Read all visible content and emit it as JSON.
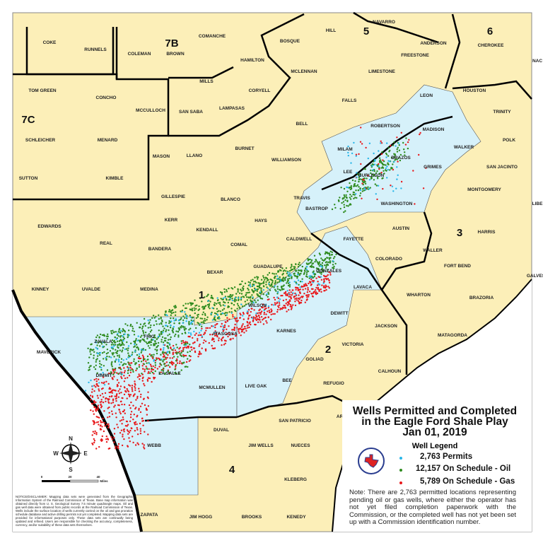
{
  "legend": {
    "title_lines": [
      "Wells Permitted and Completed",
      "in the Eagle Ford Shale Play",
      "Jan 01, 2019"
    ],
    "subtitle": "Well Legend",
    "items": [
      {
        "label": "2,763 Permits",
        "color": "#29b6e8"
      },
      {
        "label": "12,157 On Schedule - Oil",
        "color": "#2e8b1e"
      },
      {
        "label": "5,789 On Schedule - Gas",
        "color": "#e8191c"
      }
    ],
    "note": "Note: There are 2,763 permitted locations representing pending oil or gas wells, where either the operator has not yet filed completion paperwork with the Commission, or the completed well has not yet been set up with a Commission identification number.",
    "seal": "Railroad Commission of Texas seal"
  },
  "compass": {
    "n": "N",
    "s": "S",
    "e": "E",
    "w": "W"
  },
  "scale_bar": {
    "ticks": [
      "0",
      "20",
      "40"
    ],
    "unit": "Miles"
  },
  "disclaimer": "NOTICE/DISCLAIMER: Mapping data sets were generated from the Geographic Information System of the Railroad Commission of Texas. Base map information was obtained directly from U. S. Geological Survey 7.5 minute quadrangle maps. Oil and gas well data were obtained from public records at the Railroad Commission of Texas. Wells include the surface location of wells currently carried on the oil and gas proration schedule database and active drilling permits not yet completed. Mapping data sets are provided for informational purposes only. These data sets are continually being updated and refined. Users are responsible for checking the accuracy, completeness, currency, and/or suitability of these data sets themselves.",
  "colors": {
    "county_fill": "#fcefb8",
    "shale_county_fill": "#d6f1fa",
    "water": "#ffffff",
    "boundary": "#000000"
  },
  "districts": [
    "7B",
    "5",
    "6",
    "7C",
    "1",
    "3",
    "2",
    "4"
  ],
  "counties": [
    "COKE",
    "RUNNELS",
    "COLEMAN",
    "BROWN",
    "COMANCHE",
    "HAMILTON",
    "BOSQUE",
    "HILL",
    "NAVARRO",
    "FREESTONE",
    "ANDERSON",
    "CHEROKEE",
    "TOM GREEN",
    "CONCHO",
    "MCCULLOCH",
    "MILLS",
    "SAN SABA",
    "LAMPASAS",
    "CORYELL",
    "MCLENNAN",
    "LIMESTONE",
    "FALLS",
    "LEON",
    "HOUSTON",
    "TRINITY",
    "SCHLEICHER",
    "MENARD",
    "BELL",
    "ROBERTSON",
    "MADISON",
    "WALKER",
    "POLK",
    "MILAM",
    "MASON",
    "LLANO",
    "BURNET",
    "WILLIAMSON",
    "BRAZOS",
    "GRIMES",
    "SAN JACINTO",
    "SUTTON",
    "KIMBLE",
    "GILLESPIE",
    "BLANCO",
    "TRAVIS",
    "BURLESON",
    "LEE",
    "WASHINGTON",
    "MONTGOMERY",
    "BASTROP",
    "EDWARDS",
    "KERR",
    "KENDALL",
    "HAYS",
    "CALDWELL",
    "AUSTIN",
    "WALLER",
    "HARRIS",
    "REAL",
    "BANDERA",
    "COMAL",
    "FAYETTE",
    "COLORADO",
    "GUADALUPE",
    "FORT BEND",
    "GONZALES",
    "BEXAR",
    "LAVACA",
    "WHARTON",
    "BRAZORIA",
    "KINNEY",
    "UVALDE",
    "MEDINA",
    "WILSON",
    "DEWITT",
    "JACKSON",
    "MATAGORDA",
    "ZAVALA",
    "FRIO",
    "ATASCOSA",
    "KARNES",
    "VICTORIA",
    "GOLIAD",
    "CALHOUN",
    "MAVERICK",
    "DIMMIT",
    "LA SALLE",
    "MCMULLEN",
    "LIVE OAK",
    "BEE",
    "REFUGIO",
    "SAN PATRICIO",
    "ARANSAS",
    "WEBB",
    "DUVAL",
    "JIM WELLS",
    "NUECES",
    "KLEBERG",
    "ZAPATA",
    "JIM HOGG",
    "BROOKS",
    "KENEDY",
    "LIBE",
    "GALVES",
    "NAC"
  ]
}
